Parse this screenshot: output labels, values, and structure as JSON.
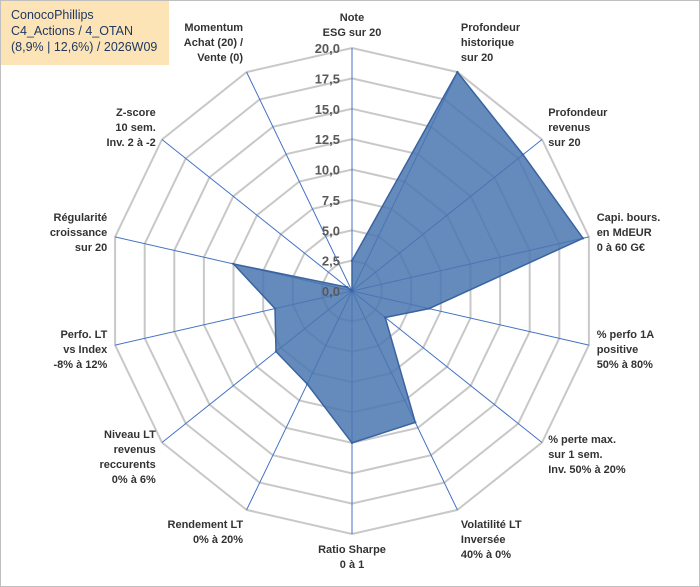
{
  "title": {
    "line1": "ConocoPhillips",
    "line2": "C4_Actions / 4_OTAN",
    "line3": "(8,9% | 12,6%) / 2026W09"
  },
  "colors": {
    "series_fill": "#4a76b0",
    "series_stroke": "#3a64a0",
    "grid": "#c8c8c8",
    "axis": "#4472c4",
    "title_bg": "#fce4b6",
    "title_text": "#1f3864"
  },
  "chart_data": {
    "type": "radar",
    "title": "",
    "rmin": 0,
    "rmax": 20,
    "step": 2.5,
    "ticks": [
      "0,0",
      "2,5",
      "5,0",
      "7,5",
      "10,0",
      "12,5",
      "15,0",
      "17,5",
      "20,0"
    ],
    "categories": [
      [
        "Note",
        "ESG sur 20"
      ],
      [
        "Profondeur",
        "historique",
        "sur 20"
      ],
      [
        "Profondeur",
        "revenus",
        "sur 20"
      ],
      [
        "Capi. bours.",
        "en MdEUR",
        "0 à 60 G€"
      ],
      [
        "% perfo 1A",
        "positive",
        "50% à 80%"
      ],
      [
        "% perte max.",
        "sur 1 sem.",
        "Inv. 50% à 20%"
      ],
      [
        "Volatilité LT",
        "Inversée",
        "40% à 0%"
      ],
      [
        "Ratio Sharpe",
        "0 à 1"
      ],
      [
        "Rendement LT",
        "0% à 20%"
      ],
      [
        "Niveau LT",
        "revenus",
        "reccurents",
        "0% à 6%"
      ],
      [
        "Perfo. LT",
        "vs Index",
        "-8% à 12%"
      ],
      [
        "Régularité",
        "croissance",
        "sur 20"
      ],
      [
        "Z-score",
        "10 sem.",
        "Inv. 2 à -2"
      ],
      [
        "Momentum",
        "Achat (20) /",
        "Vente (0)"
      ]
    ],
    "series": [
      {
        "name": "ConocoPhillips",
        "values": [
          2.5,
          20,
          18,
          19.5,
          6.5,
          3.5,
          12,
          12.5,
          8.5,
          8,
          6.5,
          10,
          0.5,
          0
        ]
      }
    ]
  }
}
